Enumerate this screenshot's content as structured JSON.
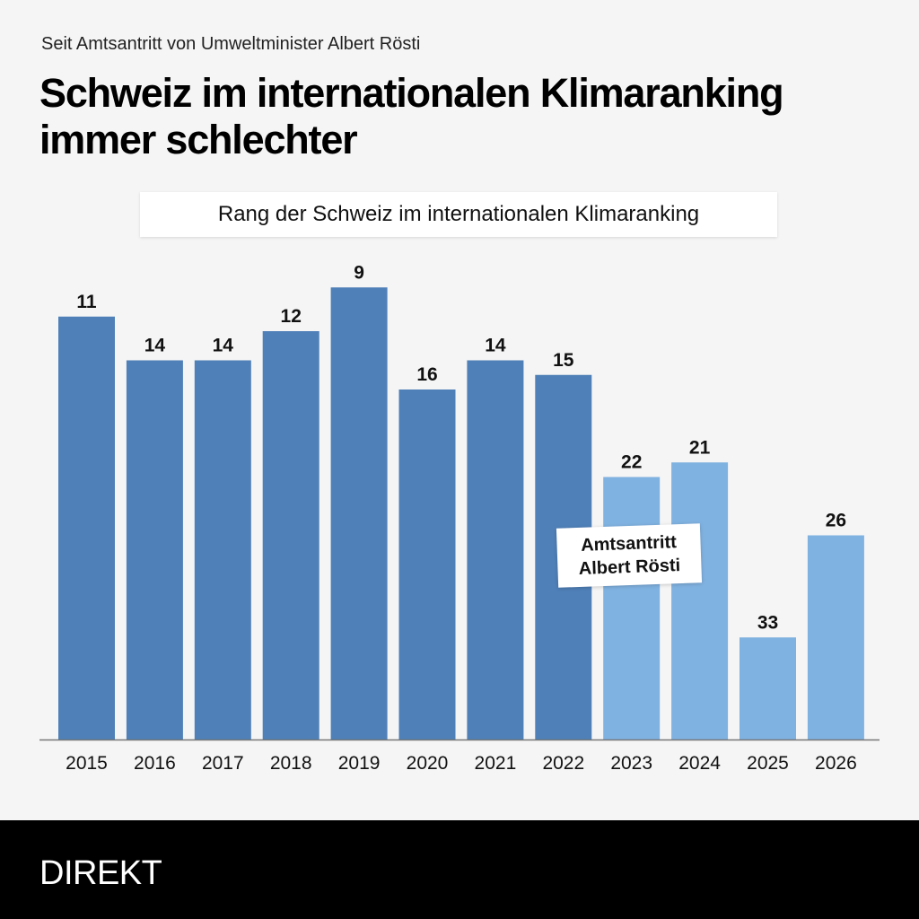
{
  "header": {
    "subtitle": "Seit Amtsantritt von Umweltminister Albert Rösti",
    "title": "Schweiz im internationalen Klimaranking immer schlechter"
  },
  "chart_data": {
    "type": "bar",
    "title": "Rang der Schweiz im internationalen Klimaranking",
    "xlabel": "",
    "ylabel": "",
    "categories": [
      "2015",
      "2016",
      "2017",
      "2018",
      "2019",
      "2020",
      "2021",
      "2022",
      "2023",
      "2024",
      "2025",
      "2026"
    ],
    "values": [
      11,
      14,
      14,
      12,
      9,
      16,
      14,
      15,
      22,
      21,
      33,
      26
    ],
    "value_note": "rank (lower is better; bar height inverse to rank)",
    "rank_axis_max": 40,
    "highlight_from_index": 8,
    "colors": {
      "before": "#4f80b8",
      "after": "#80b2e1",
      "baseline": "#777777"
    },
    "annotation": {
      "line1": "Amtsantritt",
      "line2": "Albert Rösti",
      "at": "2023"
    },
    "grid": false,
    "legend": "none"
  },
  "footer": {
    "brand": "DIREKT"
  }
}
